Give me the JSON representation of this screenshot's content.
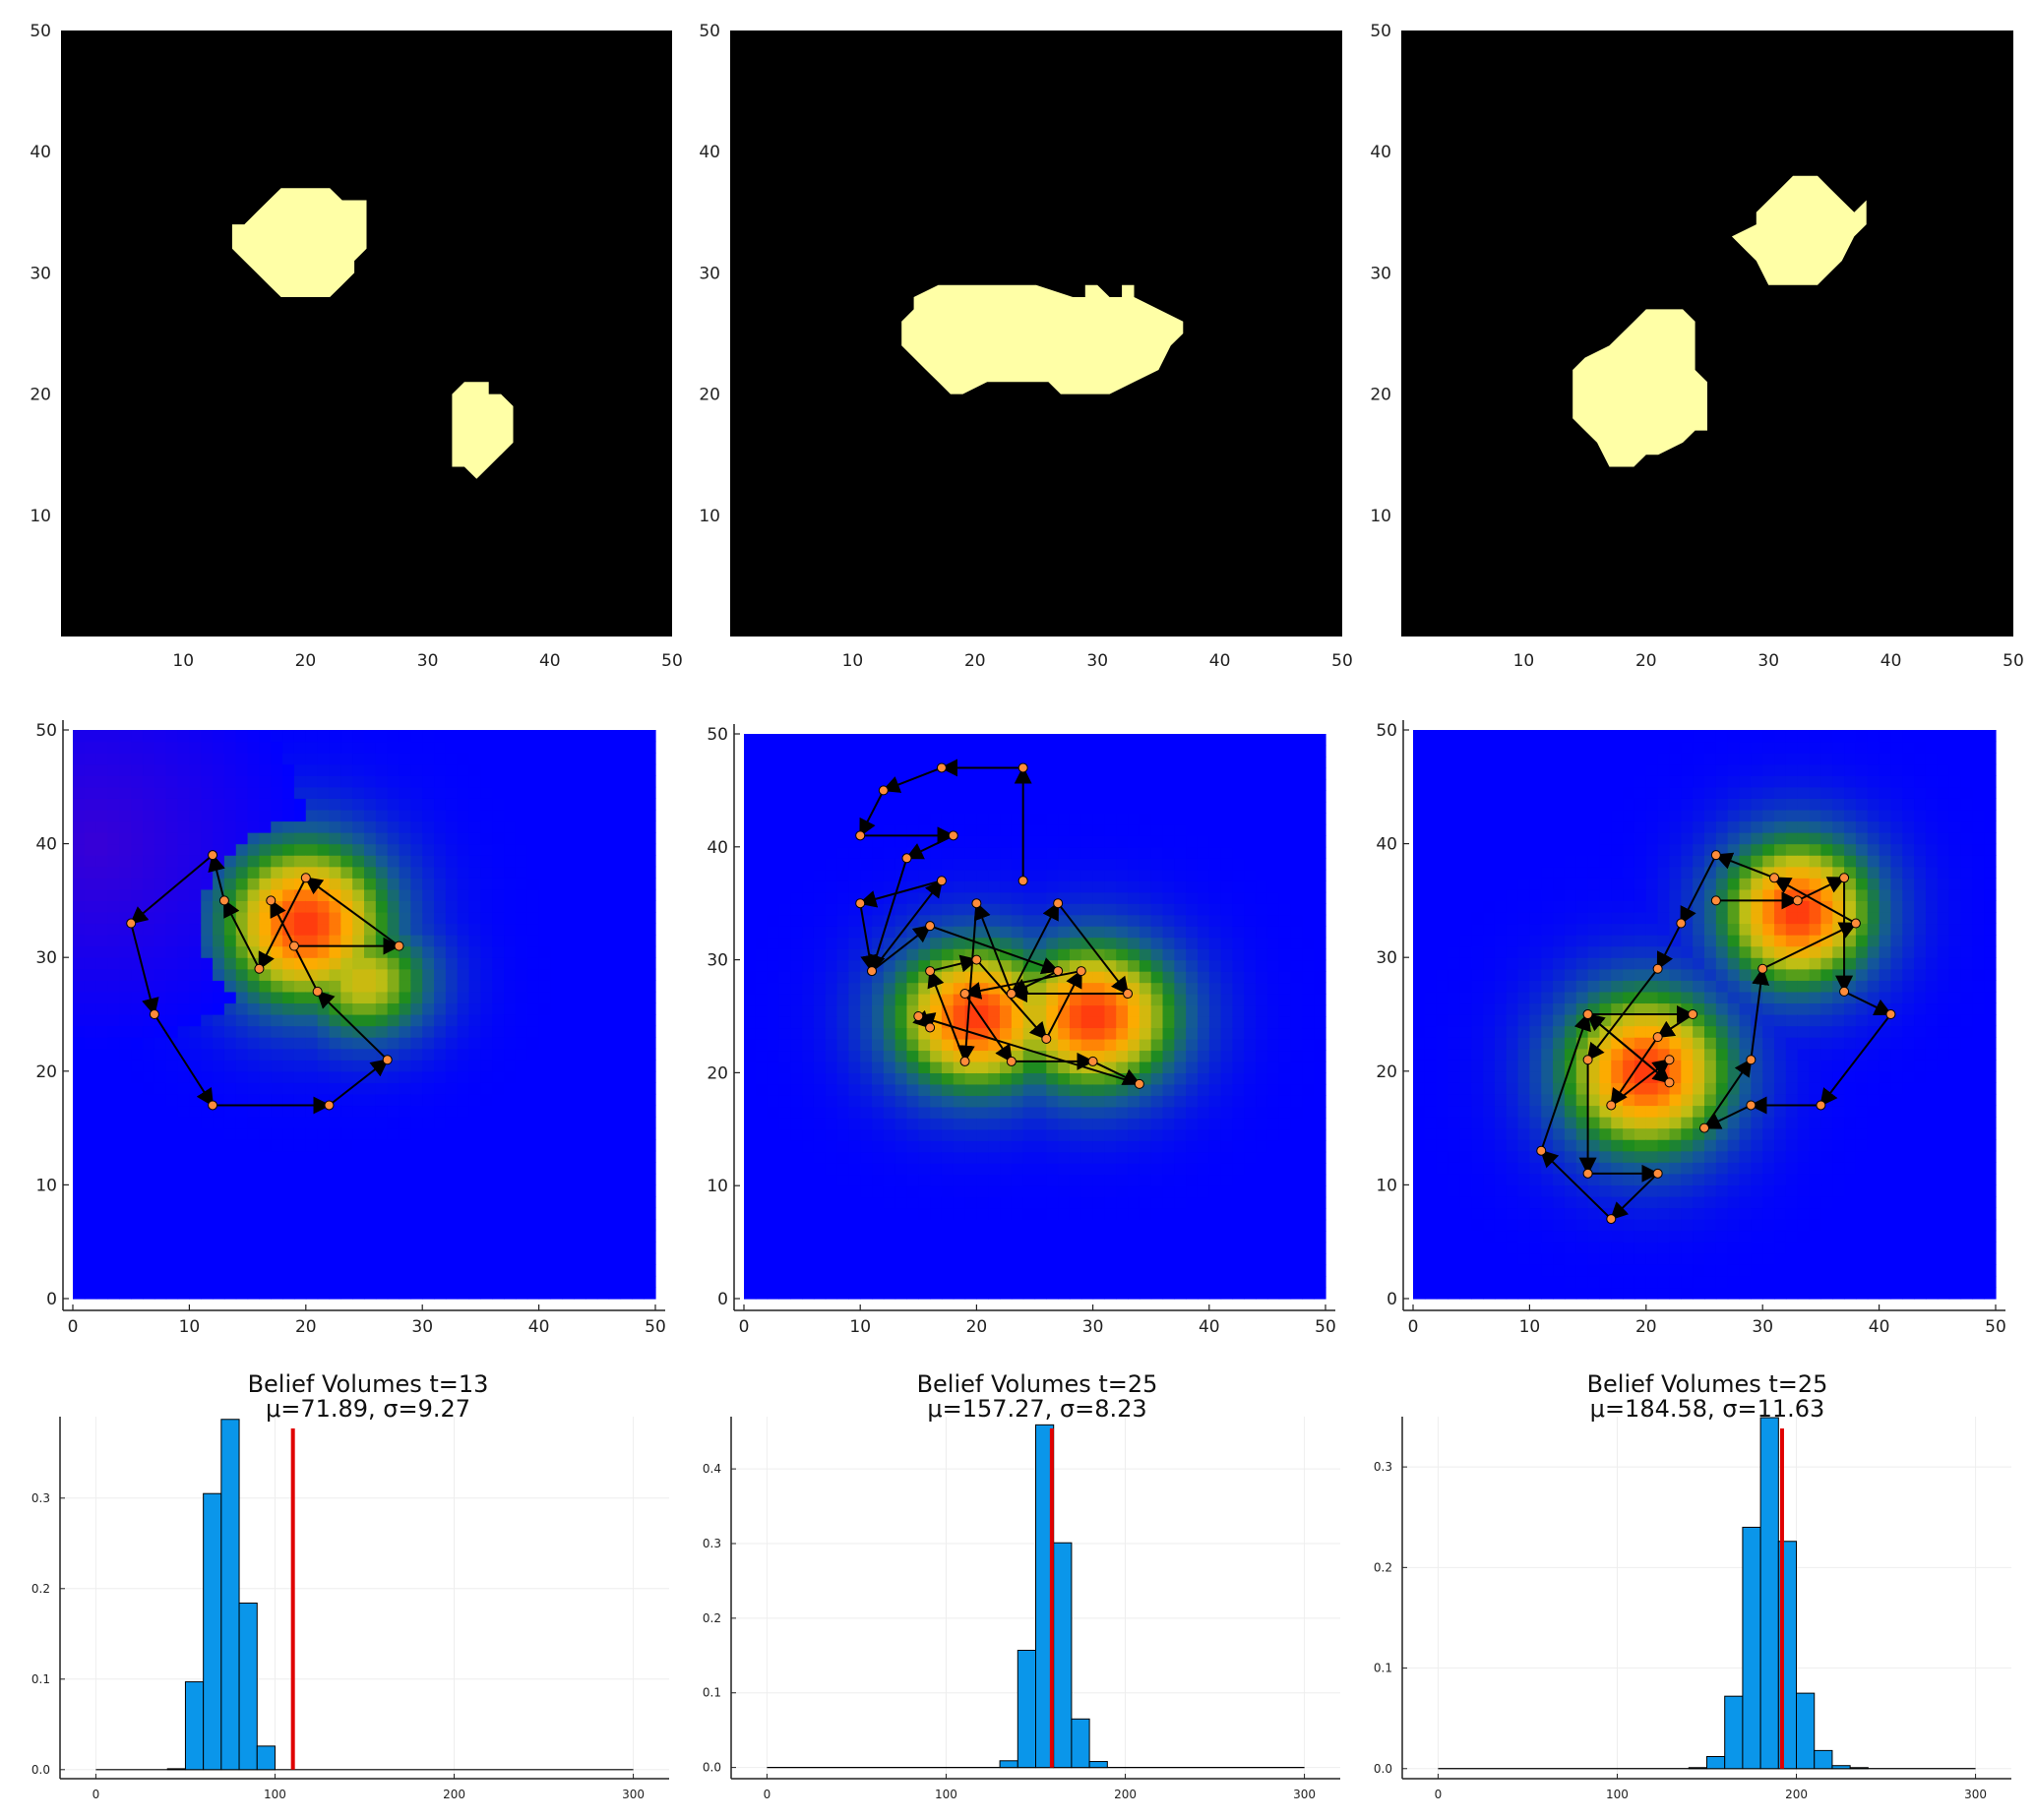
{
  "chart_data": [
    {
      "type": "heatmap",
      "description_id": "ground-truth-1",
      "colors": {
        "background": "#000000",
        "region": "#FFFFA6"
      },
      "xlim": [
        0,
        50
      ],
      "ylim": [
        0,
        50
      ],
      "x_ticks": [
        10,
        20,
        30,
        40,
        50
      ],
      "y_ticks": [
        10,
        20,
        30,
        40,
        50
      ],
      "x_tick_labels": [
        "10",
        "20",
        "30",
        "40",
        "50"
      ],
      "y_tick_labels": [
        "10",
        "20",
        "30",
        "40",
        "50"
      ],
      "regions": [
        {
          "shape": "polygon",
          "points": [
            [
              15,
              34
            ],
            [
              16,
              35
            ],
            [
              17,
              36
            ],
            [
              18,
              37
            ],
            [
              22,
              37
            ],
            [
              23,
              36
            ],
            [
              25,
              36
            ],
            [
              25,
              32
            ],
            [
              24,
              31
            ],
            [
              24,
              30
            ],
            [
              23,
              29
            ],
            [
              22,
              28
            ],
            [
              18,
              28
            ],
            [
              17,
              29
            ],
            [
              16,
              30
            ],
            [
              15,
              31
            ],
            [
              14,
              32
            ],
            [
              14,
              34
            ]
          ]
        },
        {
          "shape": "polygon",
          "points": [
            [
              32,
              20
            ],
            [
              33,
              21
            ],
            [
              35,
              21
            ],
            [
              35,
              20
            ],
            [
              36,
              20
            ],
            [
              37,
              19
            ],
            [
              37,
              16
            ],
            [
              36,
              15
            ],
            [
              35,
              14
            ],
            [
              34,
              13
            ],
            [
              33,
              14
            ],
            [
              32,
              14
            ],
            [
              32,
              17
            ]
          ]
        }
      ]
    },
    {
      "type": "heatmap",
      "description_id": "ground-truth-2",
      "colors": {
        "background": "#000000",
        "region": "#FFFFA6"
      },
      "xlim": [
        0,
        50
      ],
      "ylim": [
        0,
        50
      ],
      "x_ticks": [
        10,
        20,
        30,
        40,
        50
      ],
      "y_ticks": [
        10,
        20,
        30,
        40,
        50
      ],
      "x_tick_labels": [
        "10",
        "20",
        "30",
        "40",
        "50"
      ],
      "y_tick_labels": [
        "10",
        "20",
        "30",
        "40",
        "50"
      ],
      "regions": [
        {
          "shape": "polygon",
          "points": [
            [
              15,
              28
            ],
            [
              17,
              29
            ],
            [
              25,
              29
            ],
            [
              28,
              28
            ],
            [
              29,
              28
            ],
            [
              29,
              29
            ],
            [
              30,
              29
            ],
            [
              31,
              28
            ],
            [
              32,
              28
            ],
            [
              32,
              29
            ],
            [
              33,
              29
            ],
            [
              33,
              28
            ],
            [
              35,
              27
            ],
            [
              37,
              26
            ],
            [
              37,
              25
            ],
            [
              36,
              24
            ],
            [
              35,
              22
            ],
            [
              33,
              21
            ],
            [
              31,
              20
            ],
            [
              27,
              20
            ],
            [
              26,
              21
            ],
            [
              21,
              21
            ],
            [
              19,
              20
            ],
            [
              18,
              20
            ],
            [
              17,
              21
            ],
            [
              16,
              22
            ],
            [
              15,
              23
            ],
            [
              14,
              24
            ],
            [
              14,
              26
            ],
            [
              15,
              27
            ]
          ]
        }
      ]
    },
    {
      "type": "heatmap",
      "description_id": "ground-truth-3",
      "colors": {
        "background": "#000000",
        "region": "#FFFFA6"
      },
      "xlim": [
        0,
        50
      ],
      "ylim": [
        0,
        50
      ],
      "x_ticks": [
        10,
        20,
        30,
        40,
        50
      ],
      "y_ticks": [
        10,
        20,
        30,
        40,
        50
      ],
      "x_tick_labels": [
        "10",
        "20",
        "30",
        "40",
        "50"
      ],
      "y_tick_labels": [
        "10",
        "20",
        "30",
        "40",
        "50"
      ],
      "regions": [
        {
          "shape": "polygon",
          "points": [
            [
              30,
              36
            ],
            [
              31,
              37
            ],
            [
              32,
              38
            ],
            [
              34,
              38
            ],
            [
              35,
              37
            ],
            [
              36,
              36
            ],
            [
              37,
              35
            ],
            [
              38,
              36
            ],
            [
              38,
              34
            ],
            [
              37,
              33
            ],
            [
              36,
              31
            ],
            [
              35,
              30
            ],
            [
              34,
              29
            ],
            [
              30,
              29
            ],
            [
              29,
              31
            ],
            [
              28,
              32
            ],
            [
              27,
              33
            ],
            [
              29,
              34
            ],
            [
              29,
              35
            ]
          ]
        },
        {
          "shape": "polygon",
          "points": [
            [
              15,
              23
            ],
            [
              17,
              24
            ],
            [
              19,
              26
            ],
            [
              20,
              27
            ],
            [
              23,
              27
            ],
            [
              24,
              26
            ],
            [
              24,
              22
            ],
            [
              25,
              21
            ],
            [
              25,
              17
            ],
            [
              24,
              17
            ],
            [
              23,
              16
            ],
            [
              21,
              15
            ],
            [
              20,
              15
            ],
            [
              19,
              14
            ],
            [
              17,
              14
            ],
            [
              16,
              16
            ],
            [
              15,
              17
            ],
            [
              14,
              18
            ],
            [
              14,
              22
            ]
          ]
        }
      ]
    },
    {
      "type": "heatmap",
      "description_id": "belief-path-1",
      "colors": {
        "low": "#0000FF",
        "mid": "#1E8C1E",
        "high": "#FFB000",
        "peak": "#FF3A10",
        "marker": "#FF8C3A"
      },
      "xlim": [
        0,
        50
      ],
      "ylim": [
        0,
        50
      ],
      "x_ticks": [
        0,
        10,
        20,
        30,
        40,
        50
      ],
      "y_ticks": [
        0,
        10,
        20,
        30,
        40,
        50
      ],
      "x_tick_labels": [
        "0",
        "10",
        "20",
        "30",
        "40",
        "50"
      ],
      "y_tick_labels": [
        "0",
        "10",
        "20",
        "30",
        "40",
        "50"
      ],
      "blobs": [
        {
          "cx": 20,
          "cy": 33,
          "sx": 5.5,
          "sy": 5.5,
          "amp": 1.0
        },
        {
          "cx": 25,
          "cy": 28,
          "sx": 4.5,
          "sy": 4.0,
          "amp": 0.7
        }
      ],
      "corner_tint": {
        "cx": 2,
        "cy": 40,
        "r": 18,
        "color": "#5010C0"
      },
      "path": [
        [
          19,
          31
        ],
        [
          28,
          31
        ],
        [
          20,
          37
        ],
        [
          16,
          29
        ],
        [
          13,
          35
        ],
        [
          12,
          39
        ],
        [
          5,
          33
        ],
        [
          7,
          25
        ],
        [
          12,
          17
        ],
        [
          22,
          17
        ],
        [
          27,
          21
        ],
        [
          21,
          27
        ],
        [
          17,
          35
        ]
      ]
    },
    {
      "type": "heatmap",
      "description_id": "belief-path-2",
      "colors": {
        "low": "#0000FF",
        "mid": "#1E8C1E",
        "high": "#FFB000",
        "peak": "#FF3A10",
        "marker": "#FF8C3A"
      },
      "xlim": [
        0,
        50
      ],
      "ylim": [
        0,
        50
      ],
      "x_ticks": [
        0,
        10,
        20,
        30,
        40,
        50
      ],
      "y_ticks": [
        0,
        10,
        20,
        30,
        40,
        50
      ],
      "x_tick_labels": [
        "0",
        "10",
        "20",
        "30",
        "40",
        "50"
      ],
      "y_tick_labels": [
        "0",
        "10",
        "20",
        "30",
        "40",
        "50"
      ],
      "blobs": [
        {
          "cx": 20,
          "cy": 25,
          "sx": 5.5,
          "sy": 5.0,
          "amp": 1.0
        },
        {
          "cx": 30,
          "cy": 25,
          "sx": 5.5,
          "sy": 5.0,
          "amp": 1.0
        }
      ],
      "path": [
        [
          24,
          37
        ],
        [
          24,
          47
        ],
        [
          17,
          47
        ],
        [
          12,
          45
        ],
        [
          10,
          41
        ],
        [
          18,
          41
        ],
        [
          14,
          39
        ],
        [
          11,
          29
        ],
        [
          17,
          37
        ],
        [
          10,
          35
        ],
        [
          11,
          29
        ],
        [
          16,
          33
        ],
        [
          27,
          29
        ],
        [
          23,
          27
        ],
        [
          27,
          35
        ],
        [
          33,
          27
        ],
        [
          23,
          27
        ],
        [
          20,
          35
        ],
        [
          19,
          21
        ],
        [
          16,
          29
        ],
        [
          20,
          30
        ],
        [
          26,
          23
        ],
        [
          29,
          29
        ],
        [
          19,
          27
        ],
        [
          23,
          21
        ],
        [
          30,
          21
        ],
        [
          34,
          19
        ],
        [
          15,
          25
        ],
        [
          16,
          24
        ]
      ]
    },
    {
      "type": "heatmap",
      "description_id": "belief-path-3",
      "colors": {
        "low": "#0000FF",
        "mid": "#1E8C1E",
        "high": "#FFB000",
        "peak": "#FF3A10",
        "marker": "#FF8C3A"
      },
      "xlim": [
        0,
        50
      ],
      "ylim": [
        0,
        50
      ],
      "x_ticks": [
        0,
        10,
        20,
        30,
        40,
        50
      ],
      "y_ticks": [
        0,
        10,
        20,
        30,
        40,
        50
      ],
      "x_tick_labels": [
        "0",
        "10",
        "20",
        "30",
        "40",
        "50"
      ],
      "y_tick_labels": [
        "0",
        "10",
        "20",
        "30",
        "40",
        "50"
      ],
      "blobs": [
        {
          "cx": 33,
          "cy": 34,
          "sx": 5.0,
          "sy": 5.0,
          "amp": 1.0
        },
        {
          "cx": 20,
          "cy": 20,
          "sx": 5.5,
          "sy": 5.5,
          "amp": 1.0
        }
      ],
      "path": [
        [
          26,
          35
        ],
        [
          33,
          35
        ],
        [
          37,
          37
        ],
        [
          37,
          27
        ],
        [
          41,
          25
        ],
        [
          35,
          17
        ],
        [
          29,
          17
        ],
        [
          25,
          15
        ],
        [
          29,
          21
        ],
        [
          30,
          29
        ],
        [
          38,
          33
        ],
        [
          31,
          37
        ],
        [
          26,
          39
        ],
        [
          23,
          33
        ],
        [
          21,
          29
        ],
        [
          15,
          21
        ],
        [
          15,
          11
        ],
        [
          21,
          11
        ],
        [
          17,
          7
        ],
        [
          11,
          13
        ],
        [
          15,
          25
        ],
        [
          22,
          19
        ],
        [
          15,
          25
        ],
        [
          24,
          25
        ],
        [
          21,
          23
        ],
        [
          17,
          17
        ],
        [
          22,
          21
        ]
      ]
    },
    {
      "type": "bar",
      "title": "Belief Volumes t=13",
      "subtitle": "μ=71.89, σ=9.27",
      "colors": {
        "bar": "#0A96EA",
        "edge": "#000000",
        "line": "#E00000"
      },
      "xlim": [
        -20,
        320
      ],
      "ylim": [
        -0.01,
        0.39
      ],
      "x_ticks": [
        0,
        100,
        200,
        300
      ],
      "y_ticks": [
        0.0,
        0.1,
        0.2,
        0.3
      ],
      "x_tick_labels": [
        "0",
        "100",
        "200",
        "300"
      ],
      "y_tick_labels": [
        "0.0",
        "0.1",
        "0.2",
        "0.3"
      ],
      "bin_edges": [
        40,
        50,
        60,
        70,
        80,
        90,
        100
      ],
      "values": [
        0.001,
        0.097,
        0.305,
        0.387,
        0.184,
        0.026
      ],
      "vline": 110,
      "baseline": [
        0,
        300
      ]
    },
    {
      "type": "bar",
      "title": "Belief Volumes t=25",
      "subtitle": "μ=157.27, σ=8.23",
      "colors": {
        "bar": "#0A96EA",
        "edge": "#000000",
        "line": "#E00000"
      },
      "xlim": [
        -20,
        320
      ],
      "ylim": [
        -0.015,
        0.47
      ],
      "x_ticks": [
        0,
        100,
        200,
        300
      ],
      "y_ticks": [
        0.0,
        0.1,
        0.2,
        0.3,
        0.4
      ],
      "x_tick_labels": [
        "0",
        "100",
        "200",
        "300"
      ],
      "y_tick_labels": [
        "0.0",
        "0.1",
        "0.2",
        "0.3",
        "0.4"
      ],
      "bin_edges": [
        130,
        140,
        150,
        160,
        170,
        180,
        190
      ],
      "values": [
        0.009,
        0.157,
        0.459,
        0.301,
        0.065,
        0.008
      ],
      "vline": 159,
      "baseline": [
        0,
        300
      ]
    },
    {
      "type": "bar",
      "title": "Belief Volumes t=25",
      "subtitle": "μ=184.58, σ=11.63",
      "colors": {
        "bar": "#0A96EA",
        "edge": "#000000",
        "line": "#E00000"
      },
      "xlim": [
        -20,
        320
      ],
      "ylim": [
        -0.01,
        0.35
      ],
      "x_ticks": [
        0,
        100,
        200,
        300
      ],
      "y_ticks": [
        0.0,
        0.1,
        0.2,
        0.3
      ],
      "x_tick_labels": [
        "0",
        "100",
        "200",
        "300"
      ],
      "y_tick_labels": [
        "0.0",
        "0.1",
        "0.2",
        "0.3"
      ],
      "bin_edges": [
        140,
        150,
        160,
        170,
        180,
        190,
        200,
        210,
        220,
        230,
        240
      ],
      "values": [
        0.001,
        0.012,
        0.072,
        0.24,
        0.349,
        0.226,
        0.075,
        0.018,
        0.003,
        0.001
      ],
      "vline": 192,
      "baseline": [
        0,
        300
      ]
    }
  ]
}
